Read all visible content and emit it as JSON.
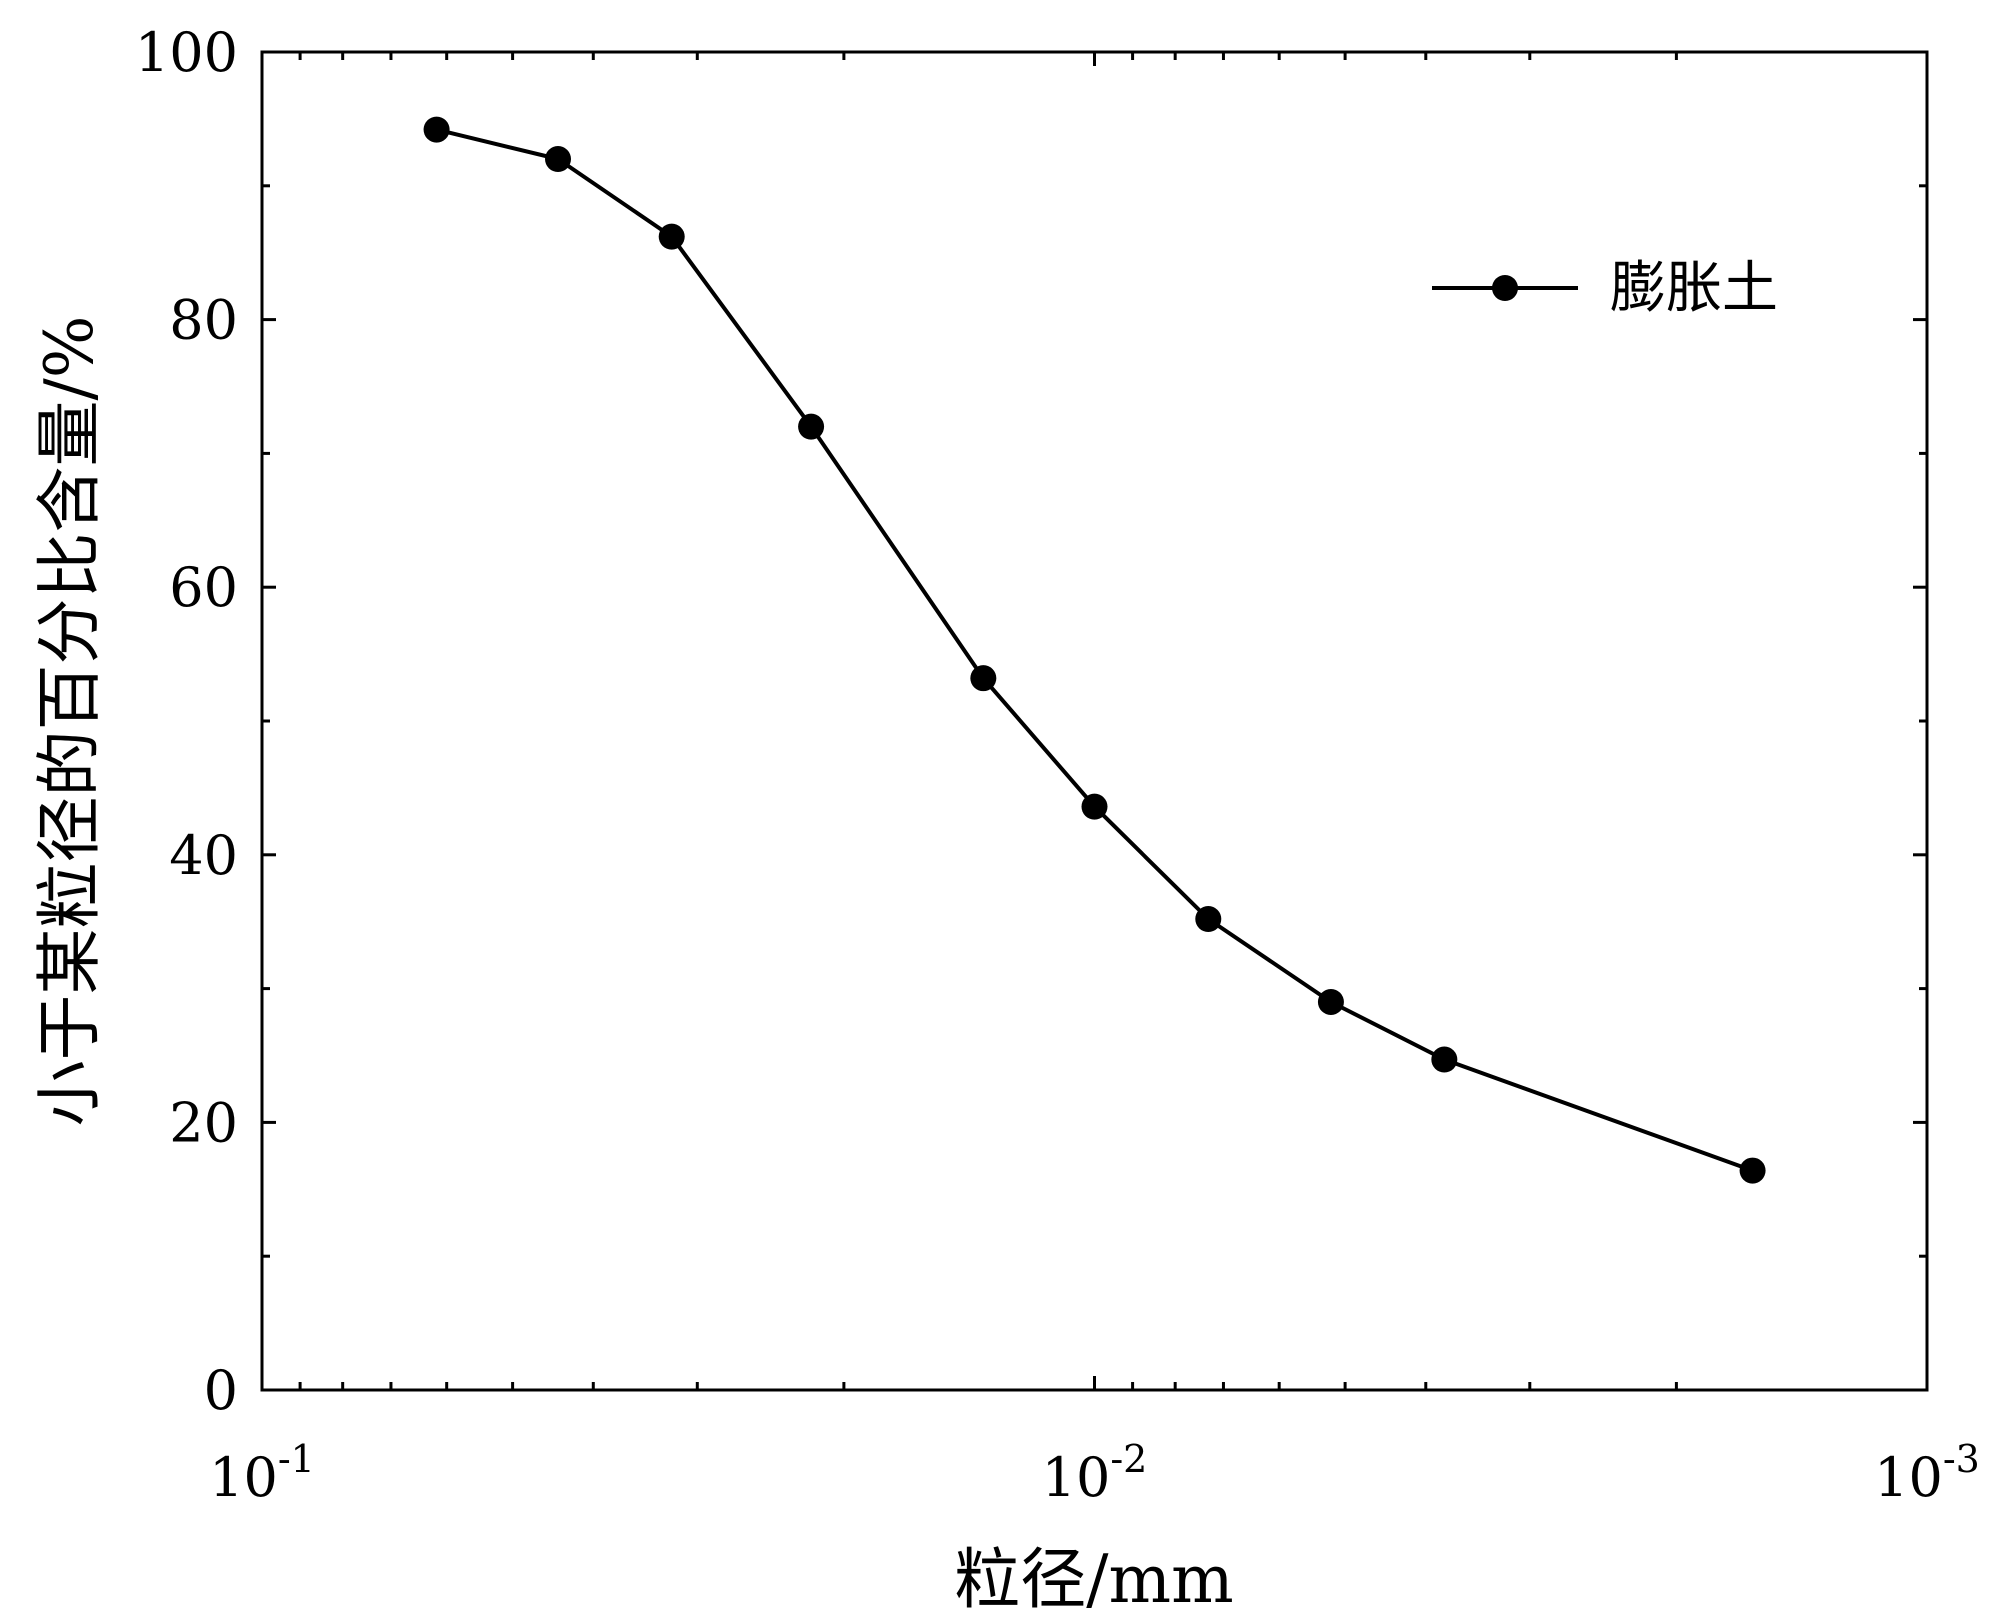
{
  "chart_data": {
    "type": "line",
    "title": "",
    "xlabel": "粒径/mm",
    "ylabel": "小于某粒径的百分比含量/%",
    "x_scale": "log",
    "x_reversed": true,
    "xlim": [
      0.1,
      0.001
    ],
    "ylim": [
      0,
      100
    ],
    "x_ticks": [
      {
        "value": 0.1,
        "base": "10",
        "exp": "-1"
      },
      {
        "value": 0.01,
        "base": "10",
        "exp": "-2"
      },
      {
        "value": 0.001,
        "base": "10",
        "exp": "-3"
      }
    ],
    "y_ticks": [
      {
        "value": 0,
        "label": "0"
      },
      {
        "value": 20,
        "label": "20"
      },
      {
        "value": 40,
        "label": "40"
      },
      {
        "value": 60,
        "label": "60"
      },
      {
        "value": 80,
        "label": "80"
      },
      {
        "value": 100,
        "label": "100"
      }
    ],
    "grid": false,
    "legend": {
      "position": "top-right"
    },
    "series": [
      {
        "name": "膨胀土",
        "color": "#000000",
        "marker": "circle",
        "x": [
          0.0617,
          0.0441,
          0.0322,
          0.0219,
          0.0136,
          0.01,
          0.0073,
          0.0052,
          0.0038,
          0.00162
        ],
        "y": [
          94.2,
          92.0,
          86.2,
          72.0,
          53.2,
          43.6,
          35.2,
          29.0,
          24.7,
          16.4
        ]
      }
    ]
  }
}
